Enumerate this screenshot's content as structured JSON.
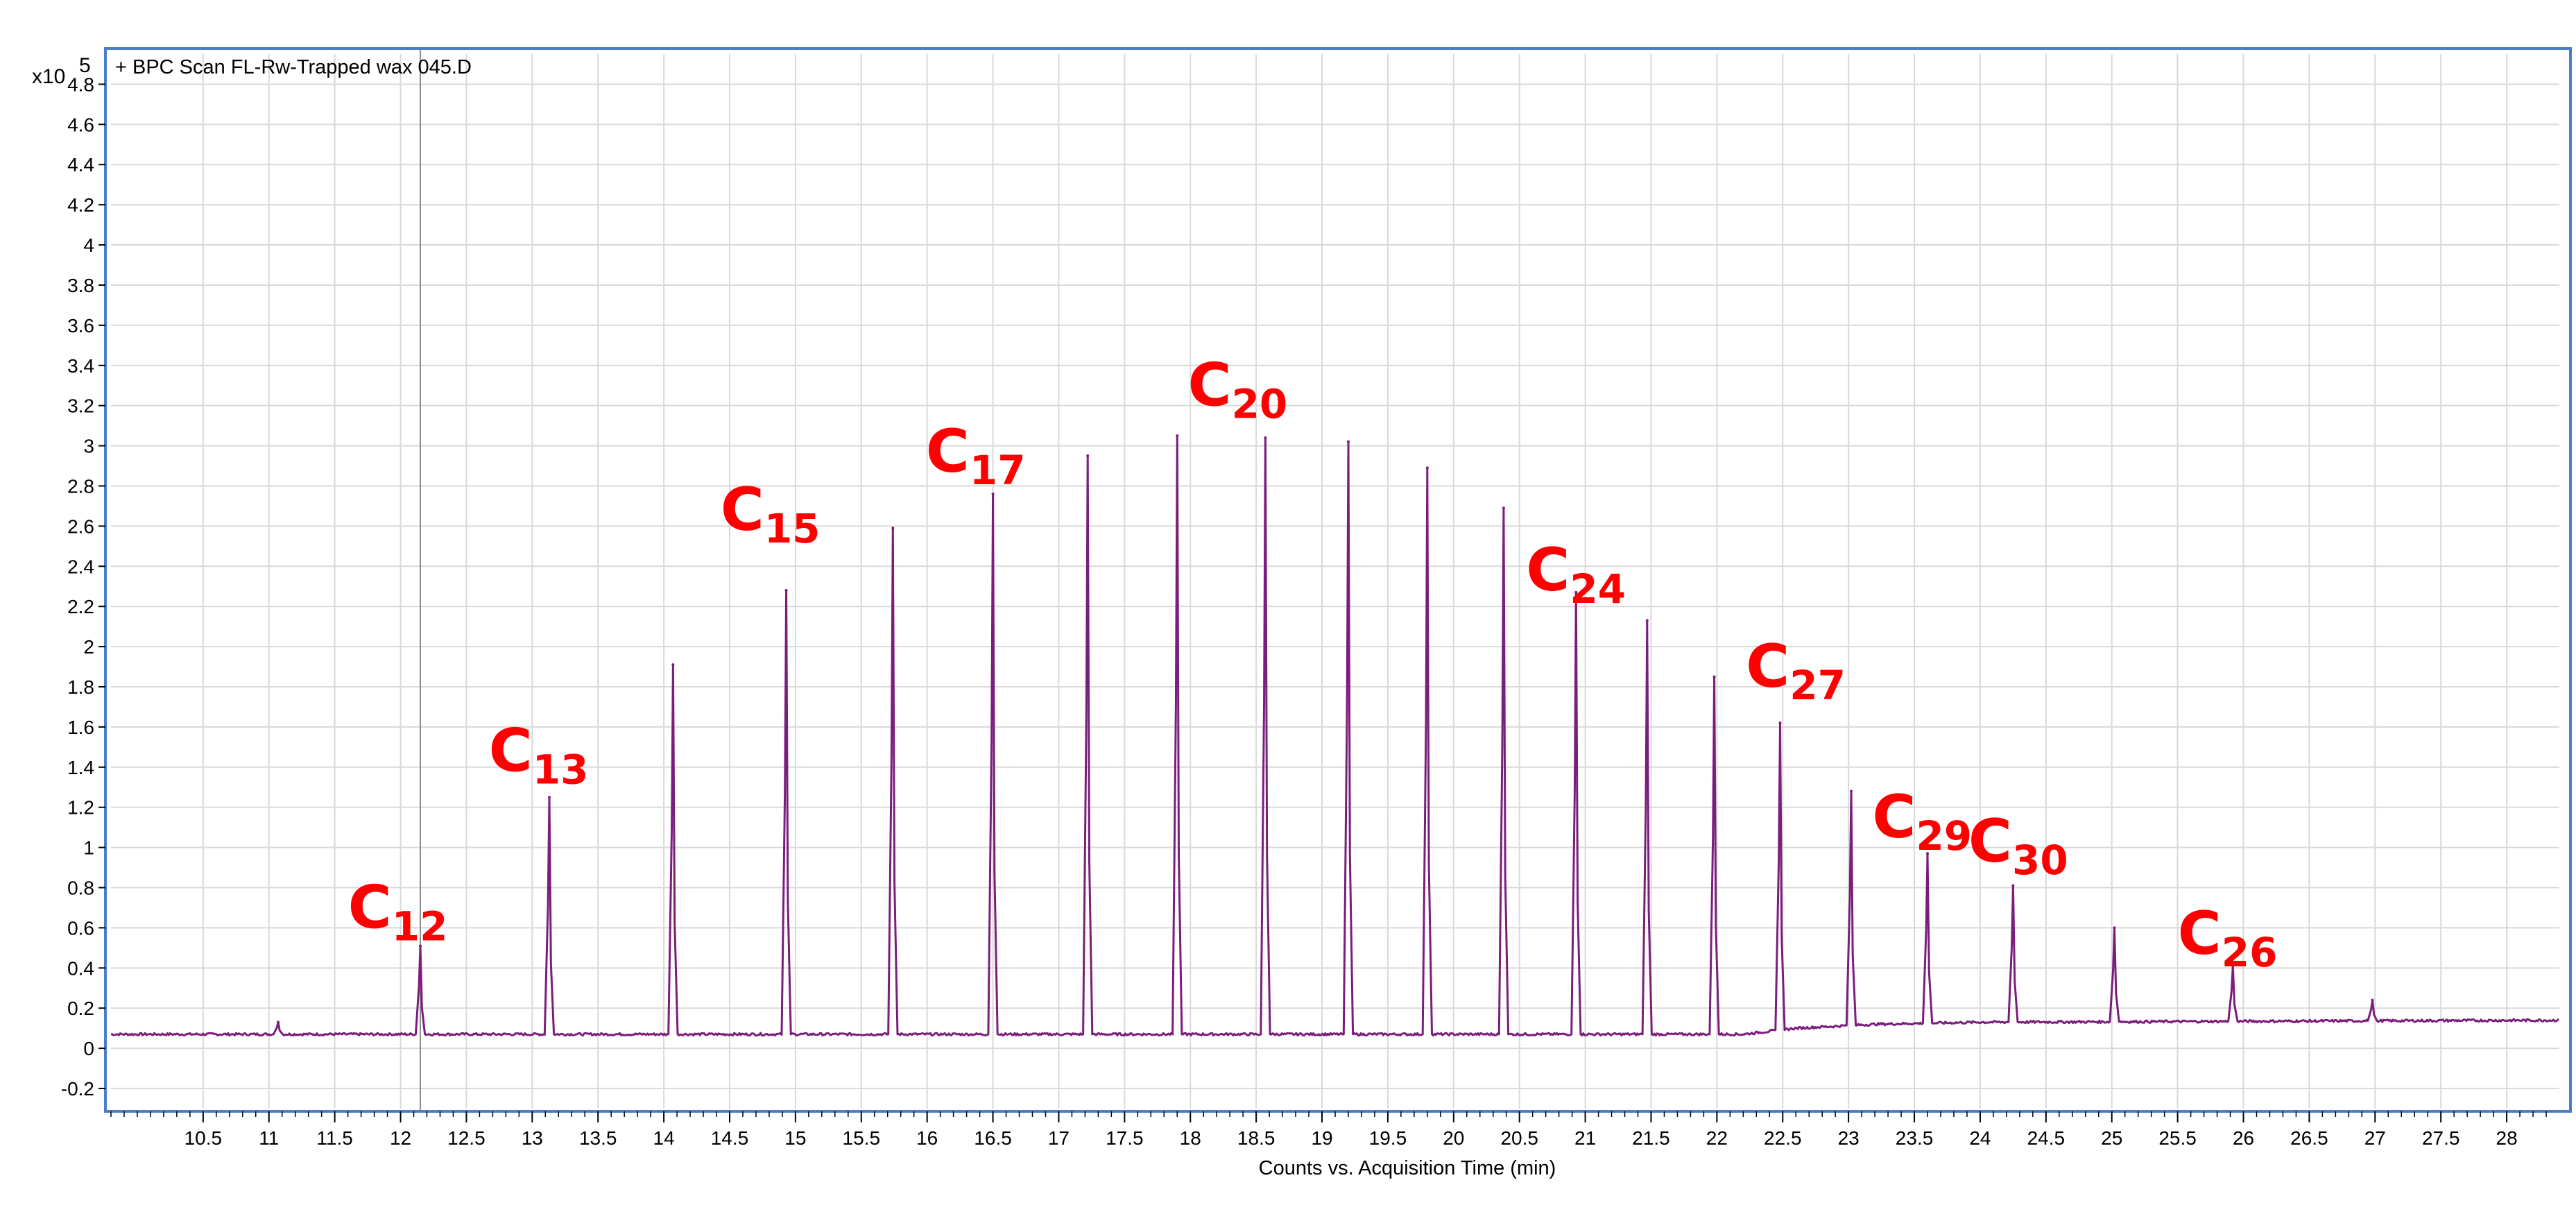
{
  "chart_data": {
    "type": "line",
    "title": "+ BPC Scan FL-Rw-Trapped wax 045.D",
    "xlabel": "Counts vs. Acquisition Time (min)",
    "y_scale_label": "x10",
    "y_scale_exponent": "5",
    "xlim": [
      9.8,
      28.4
    ],
    "ylim": [
      -0.3,
      4.95
    ],
    "x_ticks": [
      10.5,
      11,
      11.5,
      12,
      12.5,
      13,
      13.5,
      14,
      14.5,
      15,
      15.5,
      16,
      16.5,
      17,
      17.5,
      18,
      18.5,
      19,
      19.5,
      20,
      20.5,
      21,
      21.5,
      22,
      22.5,
      23,
      23.5,
      24,
      24.5,
      25,
      25.5,
      26,
      26.5,
      27,
      27.5,
      28
    ],
    "x_tick_labels": [
      "10.5",
      "11",
      "11.5",
      "12",
      "12.5",
      "13",
      "13.5",
      "14",
      "14.5",
      "15",
      "15.5",
      "16",
      "16.5",
      "17",
      "17.5",
      "18",
      "18.5",
      "19",
      "19.5",
      "20",
      "20.5",
      "21",
      "21.5",
      "22",
      "22.5",
      "23",
      "23.5",
      "24",
      "24.5",
      "25",
      "25.5",
      "26",
      "26.5",
      "27",
      "27.5",
      "28"
    ],
    "y_ticks": [
      -0.2,
      0,
      0.2,
      0.4,
      0.6,
      0.8,
      1,
      1.2,
      1.4,
      1.6,
      1.8,
      2,
      2.2,
      2.4,
      2.6,
      2.8,
      3,
      3.2,
      3.4,
      3.6,
      3.8,
      4,
      4.2,
      4.4,
      4.6,
      4.8
    ],
    "y_tick_labels": [
      "-0.2",
      "0",
      "0.2",
      "0.4",
      "0.6",
      "0.8",
      "1",
      "1.2",
      "1.4",
      "1.6",
      "1.8",
      "2",
      "2.2",
      "2.4",
      "2.6",
      "2.8",
      "3",
      "3.2",
      "3.4",
      "3.6",
      "3.8",
      "4",
      "4.2",
      "4.4",
      "4.6",
      "4.8"
    ],
    "grid": true,
    "cursor_x": 12.15,
    "baseline": [
      [
        9.8,
        0.07
      ],
      [
        22.2,
        0.07
      ],
      [
        22.6,
        0.1
      ],
      [
        23.2,
        0.12
      ],
      [
        24.0,
        0.13
      ],
      [
        28.4,
        0.14
      ]
    ],
    "peaks": [
      {
        "x": 11.07,
        "y": 0.13
      },
      {
        "x": 12.15,
        "y": 0.51
      },
      {
        "x": 13.13,
        "y": 1.25
      },
      {
        "x": 14.07,
        "y": 1.91
      },
      {
        "x": 14.93,
        "y": 2.28
      },
      {
        "x": 15.74,
        "y": 2.59
      },
      {
        "x": 16.5,
        "y": 2.76
      },
      {
        "x": 17.22,
        "y": 2.95
      },
      {
        "x": 17.9,
        "y": 3.05
      },
      {
        "x": 18.57,
        "y": 3.04
      },
      {
        "x": 19.2,
        "y": 3.02
      },
      {
        "x": 19.8,
        "y": 2.89
      },
      {
        "x": 20.38,
        "y": 2.69
      },
      {
        "x": 20.93,
        "y": 2.27
      },
      {
        "x": 21.47,
        "y": 2.13
      },
      {
        "x": 21.98,
        "y": 1.85
      },
      {
        "x": 22.48,
        "y": 1.62
      },
      {
        "x": 23.02,
        "y": 1.28
      },
      {
        "x": 23.6,
        "y": 0.97
      },
      {
        "x": 24.25,
        "y": 0.81
      },
      {
        "x": 25.02,
        "y": 0.6
      },
      {
        "x": 25.92,
        "y": 0.41
      },
      {
        "x": 26.98,
        "y": 0.24
      }
    ],
    "annotations": [
      {
        "text": "C",
        "sub": "12",
        "x": 11.6,
        "y": 0.6
      },
      {
        "text": "C",
        "sub": "13",
        "x": 12.67,
        "y": 1.38
      },
      {
        "text": "C",
        "sub": "15",
        "x": 14.43,
        "y": 2.58
      },
      {
        "text": "C",
        "sub": "17",
        "x": 15.99,
        "y": 2.87
      },
      {
        "text": "C",
        "sub": "20",
        "x": 17.98,
        "y": 3.2
      },
      {
        "text": "C",
        "sub": "24",
        "x": 20.55,
        "y": 2.28
      },
      {
        "text": "C",
        "sub": "27",
        "x": 22.22,
        "y": 1.8
      },
      {
        "text": "C",
        "sub": "29",
        "x": 23.18,
        "y": 1.05
      },
      {
        "text": "C",
        "sub": "30",
        "x": 23.91,
        "y": 0.93
      },
      {
        "text": "C",
        "sub": "26",
        "x": 25.5,
        "y": 0.47
      }
    ],
    "colors": {
      "trace": "#7b1d7d",
      "frame": "#4a7fc6",
      "grid": "#d9d9d9",
      "labels": "#ff0000",
      "cursor": "#8c8c8c"
    }
  }
}
